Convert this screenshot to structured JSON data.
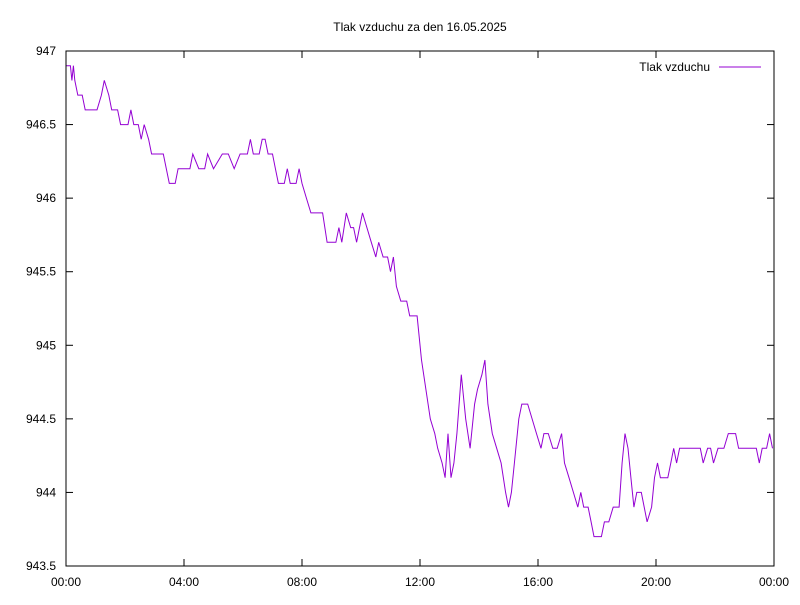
{
  "chart_data": {
    "type": "line",
    "title": "Tlak vzduchu za den 16.05.2025",
    "xlabel": "",
    "ylabel": "",
    "x_ticks": [
      "00:00",
      "04:00",
      "08:00",
      "12:00",
      "16:00",
      "20:00",
      "00:00"
    ],
    "y_ticks": [
      "943.5",
      "944",
      "944.5",
      "945",
      "945.5",
      "946",
      "946.5",
      "947"
    ],
    "xlim": [
      0,
      24
    ],
    "ylim": [
      943.5,
      947
    ],
    "grid": false,
    "legend_position": "top-right",
    "series": [
      {
        "name": "Tlak vzduchu",
        "color": "#9400d3",
        "points": [
          [
            0.0,
            946.9
          ],
          [
            0.15,
            946.9
          ],
          [
            0.2,
            946.8
          ],
          [
            0.25,
            946.9
          ],
          [
            0.3,
            946.8
          ],
          [
            0.4,
            946.7
          ],
          [
            0.55,
            946.7
          ],
          [
            0.65,
            946.6
          ],
          [
            1.05,
            946.6
          ],
          [
            1.2,
            946.7
          ],
          [
            1.3,
            946.8
          ],
          [
            1.45,
            946.7
          ],
          [
            1.55,
            946.6
          ],
          [
            1.75,
            946.6
          ],
          [
            1.85,
            946.5
          ],
          [
            2.1,
            946.5
          ],
          [
            2.2,
            946.6
          ],
          [
            2.3,
            946.5
          ],
          [
            2.45,
            946.5
          ],
          [
            2.55,
            946.4
          ],
          [
            2.65,
            946.5
          ],
          [
            2.8,
            946.4
          ],
          [
            2.9,
            946.3
          ],
          [
            3.3,
            946.3
          ],
          [
            3.5,
            946.1
          ],
          [
            3.7,
            946.1
          ],
          [
            3.8,
            946.2
          ],
          [
            4.2,
            946.2
          ],
          [
            4.3,
            946.3
          ],
          [
            4.5,
            946.2
          ],
          [
            4.7,
            946.2
          ],
          [
            4.8,
            946.3
          ],
          [
            5.0,
            946.2
          ],
          [
            5.3,
            946.3
          ],
          [
            5.5,
            946.3
          ],
          [
            5.7,
            946.2
          ],
          [
            5.9,
            946.3
          ],
          [
            6.15,
            946.3
          ],
          [
            6.25,
            946.4
          ],
          [
            6.35,
            946.3
          ],
          [
            6.55,
            946.3
          ],
          [
            6.65,
            946.4
          ],
          [
            6.75,
            946.4
          ],
          [
            6.85,
            946.3
          ],
          [
            7.0,
            946.3
          ],
          [
            7.1,
            946.2
          ],
          [
            7.2,
            946.1
          ],
          [
            7.4,
            946.1
          ],
          [
            7.5,
            946.2
          ],
          [
            7.6,
            946.1
          ],
          [
            7.8,
            946.1
          ],
          [
            7.9,
            946.2
          ],
          [
            8.0,
            946.1
          ],
          [
            8.15,
            946.0
          ],
          [
            8.3,
            945.9
          ],
          [
            8.7,
            945.9
          ],
          [
            8.85,
            945.7
          ],
          [
            9.15,
            945.7
          ],
          [
            9.25,
            945.8
          ],
          [
            9.35,
            945.7
          ],
          [
            9.5,
            945.9
          ],
          [
            9.65,
            945.8
          ],
          [
            9.75,
            945.8
          ],
          [
            9.85,
            945.7
          ],
          [
            9.95,
            945.8
          ],
          [
            10.05,
            945.9
          ],
          [
            10.2,
            945.8
          ],
          [
            10.35,
            945.7
          ],
          [
            10.5,
            945.6
          ],
          [
            10.6,
            945.7
          ],
          [
            10.75,
            945.6
          ],
          [
            10.9,
            945.6
          ],
          [
            11.0,
            945.5
          ],
          [
            11.1,
            945.6
          ],
          [
            11.2,
            945.4
          ],
          [
            11.35,
            945.3
          ],
          [
            11.55,
            945.3
          ],
          [
            11.65,
            945.2
          ],
          [
            11.9,
            945.2
          ],
          [
            12.05,
            944.9
          ],
          [
            12.2,
            944.7
          ],
          [
            12.35,
            944.5
          ],
          [
            12.5,
            944.4
          ],
          [
            12.6,
            944.3
          ],
          [
            12.75,
            944.2
          ],
          [
            12.85,
            944.1
          ],
          [
            12.95,
            944.4
          ],
          [
            13.05,
            944.1
          ],
          [
            13.15,
            944.2
          ],
          [
            13.25,
            944.4
          ],
          [
            13.4,
            944.8
          ],
          [
            13.55,
            944.5
          ],
          [
            13.7,
            944.3
          ],
          [
            13.85,
            944.6
          ],
          [
            13.95,
            944.7
          ],
          [
            14.1,
            944.8
          ],
          [
            14.2,
            944.9
          ],
          [
            14.3,
            944.6
          ],
          [
            14.45,
            944.4
          ],
          [
            14.6,
            944.3
          ],
          [
            14.75,
            944.2
          ],
          [
            14.9,
            944.0
          ],
          [
            15.0,
            943.9
          ],
          [
            15.1,
            944.0
          ],
          [
            15.2,
            944.2
          ],
          [
            15.35,
            944.5
          ],
          [
            15.45,
            944.6
          ],
          [
            15.65,
            944.6
          ],
          [
            15.8,
            944.5
          ],
          [
            15.95,
            944.4
          ],
          [
            16.1,
            944.3
          ],
          [
            16.2,
            944.4
          ],
          [
            16.35,
            944.4
          ],
          [
            16.5,
            944.3
          ],
          [
            16.65,
            944.3
          ],
          [
            16.8,
            944.4
          ],
          [
            16.9,
            944.2
          ],
          [
            17.05,
            944.1
          ],
          [
            17.2,
            944.0
          ],
          [
            17.35,
            943.9
          ],
          [
            17.45,
            944.0
          ],
          [
            17.55,
            943.9
          ],
          [
            17.7,
            943.9
          ],
          [
            17.8,
            943.8
          ],
          [
            17.9,
            943.7
          ],
          [
            18.15,
            943.7
          ],
          [
            18.25,
            943.8
          ],
          [
            18.4,
            943.8
          ],
          [
            18.55,
            943.9
          ],
          [
            18.75,
            943.9
          ],
          [
            18.85,
            944.2
          ],
          [
            18.95,
            944.4
          ],
          [
            19.05,
            944.3
          ],
          [
            19.15,
            944.1
          ],
          [
            19.25,
            943.9
          ],
          [
            19.35,
            944.0
          ],
          [
            19.5,
            944.0
          ],
          [
            19.6,
            943.9
          ],
          [
            19.7,
            943.8
          ],
          [
            19.85,
            943.9
          ],
          [
            19.95,
            944.1
          ],
          [
            20.05,
            944.2
          ],
          [
            20.15,
            944.1
          ],
          [
            20.4,
            944.1
          ],
          [
            20.5,
            944.2
          ],
          [
            20.6,
            944.3
          ],
          [
            20.7,
            944.2
          ],
          [
            20.8,
            944.3
          ],
          [
            21.5,
            944.3
          ],
          [
            21.6,
            944.2
          ],
          [
            21.75,
            944.3
          ],
          [
            21.85,
            944.3
          ],
          [
            21.95,
            944.2
          ],
          [
            22.1,
            944.3
          ],
          [
            22.3,
            944.3
          ],
          [
            22.45,
            944.4
          ],
          [
            22.7,
            944.4
          ],
          [
            22.8,
            944.3
          ],
          [
            23.4,
            944.3
          ],
          [
            23.5,
            944.2
          ],
          [
            23.6,
            944.3
          ],
          [
            23.75,
            944.3
          ],
          [
            23.85,
            944.4
          ],
          [
            23.95,
            944.3
          ]
        ]
      }
    ]
  }
}
